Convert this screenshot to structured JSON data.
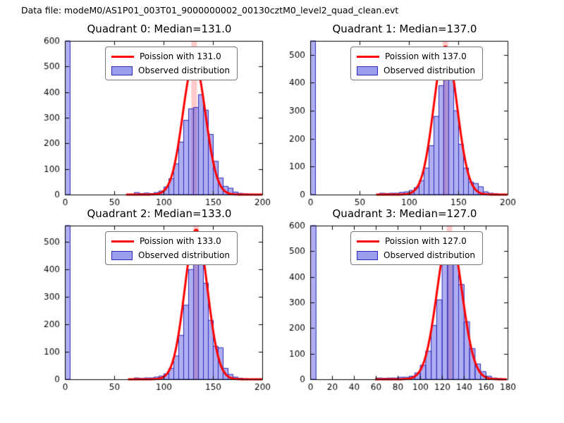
{
  "figure_title": "Data file: modeM0/AS1P01_003T01_9000000002_00130cztM0_level2_quad_clean.evt",
  "colors": {
    "bar_fill": "rgba(62,62,222,0.42)",
    "bar_edge": "#2a2ab8",
    "curve": "#ff0000",
    "band": "rgba(255,80,80,0.30)",
    "axis": "#000000",
    "tick_text": "#000000"
  },
  "chart_data": [
    {
      "type": "bar",
      "title": "Quadrant 0: Median=131.0",
      "median": 131.0,
      "legend": [
        {
          "label": "Poission with 131.0",
          "sample": "line"
        },
        {
          "label": "Observed distribution",
          "sample": "patch"
        }
      ],
      "xlim": [
        0,
        200
      ],
      "ylim": [
        0,
        600
      ],
      "xticks": [
        0,
        50,
        100,
        150,
        200
      ],
      "yticks": [
        0,
        100,
        200,
        300,
        400,
        500,
        600
      ],
      "bin_width": 5,
      "bins": [
        [
          0,
          600
        ],
        [
          70,
          8
        ],
        [
          75,
          4
        ],
        [
          80,
          6
        ],
        [
          85,
          4
        ],
        [
          90,
          8
        ],
        [
          95,
          14
        ],
        [
          100,
          30
        ],
        [
          105,
          62
        ],
        [
          110,
          120
        ],
        [
          115,
          205
        ],
        [
          120,
          290
        ],
        [
          125,
          335
        ],
        [
          130,
          340
        ],
        [
          135,
          390
        ],
        [
          140,
          330
        ],
        [
          145,
          235
        ],
        [
          150,
          130
        ],
        [
          155,
          65
        ],
        [
          160,
          32
        ],
        [
          165,
          25
        ],
        [
          170,
          10
        ],
        [
          175,
          5
        ],
        [
          180,
          3
        ],
        [
          185,
          2
        ]
      ],
      "curve": {
        "mu": 131,
        "sigma": 11.5,
        "amplitude": 520
      }
    },
    {
      "type": "bar",
      "title": "Quadrant 1: Median=137.0",
      "median": 137.0,
      "legend": [
        {
          "label": "Poission with 137.0",
          "sample": "line"
        },
        {
          "label": "Observed distribution",
          "sample": "patch"
        }
      ],
      "xlim": [
        0,
        200
      ],
      "ylim": [
        0,
        550
      ],
      "xticks": [
        0,
        50,
        100,
        150,
        200
      ],
      "yticks": [
        0,
        100,
        200,
        300,
        400,
        500
      ],
      "bin_width": 5,
      "bins": [
        [
          0,
          550
        ],
        [
          70,
          5
        ],
        [
          75,
          4
        ],
        [
          80,
          5
        ],
        [
          85,
          5
        ],
        [
          90,
          8
        ],
        [
          95,
          10
        ],
        [
          100,
          15
        ],
        [
          105,
          25
        ],
        [
          110,
          50
        ],
        [
          115,
          95
        ],
        [
          120,
          175
        ],
        [
          125,
          280
        ],
        [
          130,
          390
        ],
        [
          135,
          505
        ],
        [
          140,
          430
        ],
        [
          145,
          300
        ],
        [
          150,
          180
        ],
        [
          155,
          95
        ],
        [
          160,
          45
        ],
        [
          165,
          40
        ],
        [
          170,
          28
        ],
        [
          175,
          10
        ],
        [
          180,
          5
        ],
        [
          185,
          3
        ]
      ],
      "curve": {
        "mu": 137,
        "sigma": 11.7,
        "amplitude": 530
      }
    },
    {
      "type": "bar",
      "title": "Quadrant 2: Median=133.0",
      "median": 133.0,
      "legend": [
        {
          "label": "Poission with 133.0",
          "sample": "line"
        },
        {
          "label": "Observed distribution",
          "sample": "patch"
        }
      ],
      "xlim": [
        0,
        200
      ],
      "ylim": [
        0,
        560
      ],
      "xticks": [
        0,
        50,
        100,
        150,
        200
      ],
      "yticks": [
        0,
        100,
        200,
        300,
        400,
        500
      ],
      "bin_width": 5,
      "bins": [
        [
          0,
          560
        ],
        [
          70,
          5
        ],
        [
          75,
          3
        ],
        [
          80,
          5
        ],
        [
          85,
          5
        ],
        [
          90,
          8
        ],
        [
          95,
          12
        ],
        [
          100,
          20
        ],
        [
          105,
          40
        ],
        [
          110,
          85
        ],
        [
          115,
          160
        ],
        [
          120,
          270
        ],
        [
          125,
          400
        ],
        [
          130,
          520
        ],
        [
          135,
          510
        ],
        [
          140,
          350
        ],
        [
          145,
          215
        ],
        [
          150,
          120
        ],
        [
          155,
          115
        ],
        [
          160,
          40
        ],
        [
          165,
          18
        ],
        [
          170,
          8
        ],
        [
          175,
          4
        ],
        [
          180,
          2
        ]
      ],
      "curve": {
        "mu": 133,
        "sigma": 11.5,
        "amplitude": 545
      }
    },
    {
      "type": "bar",
      "title": "Quadrant 3: Median=127.0",
      "median": 127.0,
      "legend": [
        {
          "label": "Poission with 127.0",
          "sample": "line"
        },
        {
          "label": "Observed distribution",
          "sample": "patch"
        }
      ],
      "xlim": [
        0,
        180
      ],
      "ylim": [
        0,
        600
      ],
      "xticks": [
        0,
        20,
        40,
        60,
        80,
        100,
        120,
        140,
        160,
        180
      ],
      "yticks": [
        0,
        100,
        200,
        300,
        400,
        500,
        600
      ],
      "bin_width": 5,
      "bins": [
        [
          0,
          600
        ],
        [
          60,
          5
        ],
        [
          65,
          4
        ],
        [
          70,
          5
        ],
        [
          75,
          5
        ],
        [
          80,
          8
        ],
        [
          85,
          8
        ],
        [
          90,
          12
        ],
        [
          95,
          25
        ],
        [
          100,
          55
        ],
        [
          105,
          110
        ],
        [
          110,
          210
        ],
        [
          115,
          310
        ],
        [
          120,
          470
        ],
        [
          125,
          560
        ],
        [
          130,
          520
        ],
        [
          135,
          370
        ],
        [
          140,
          225
        ],
        [
          145,
          120
        ],
        [
          150,
          60
        ],
        [
          155,
          30
        ],
        [
          160,
          12
        ],
        [
          165,
          5
        ],
        [
          170,
          3
        ]
      ],
      "curve": {
        "mu": 127,
        "sigma": 11.3,
        "amplitude": 570
      }
    }
  ]
}
